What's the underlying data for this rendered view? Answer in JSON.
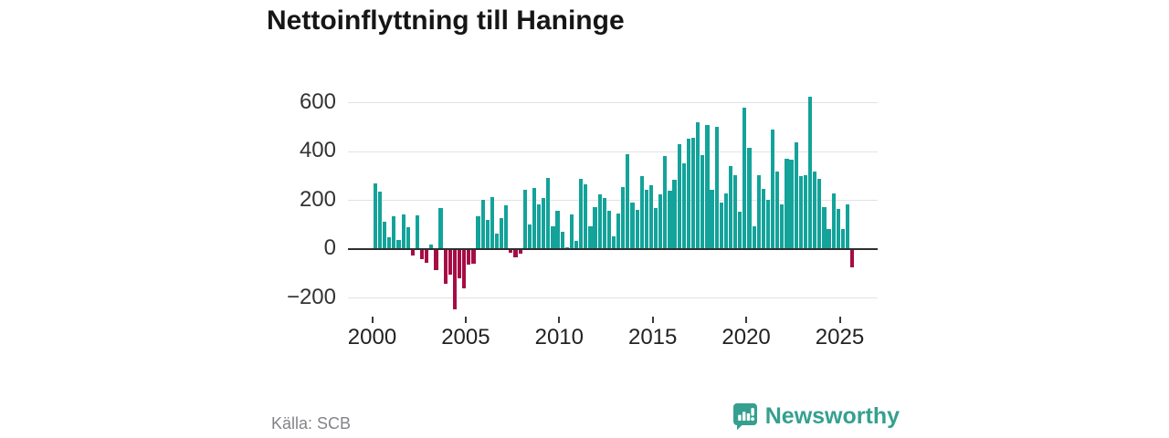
{
  "title": "Nettoinflyttning till Haninge",
  "source": "Källa: SCB",
  "branding": {
    "name": "Newsworthy"
  },
  "colors": {
    "positive_bar": "#13a39a",
    "negative_bar": "#a60d45",
    "brand_teal": "#35a08f",
    "grid": "#e2e2e2",
    "zero_line": "#2e2e2e",
    "axis_text": "#333333",
    "source_text": "#83848a",
    "title_text": "#161616"
  },
  "chart_data": {
    "type": "bar",
    "title": "Nettoinflyttning till Haninge",
    "x_start_year": 2000,
    "points_per_year": 4,
    "x_ticks": [
      2000,
      2005,
      2010,
      2015,
      2020,
      2025
    ],
    "y_ticks": [
      600,
      400,
      200,
      0,
      -200
    ],
    "ylim": [
      -260,
      660
    ],
    "grid": true,
    "legend": "none",
    "values": [
      265,
      230,
      110,
      45,
      130,
      35,
      140,
      85,
      -22,
      135,
      -35,
      -50,
      15,
      -80,
      165,
      -135,
      -100,
      -240,
      -115,
      -155,
      -60,
      -55,
      130,
      200,
      115,
      210,
      60,
      125,
      175,
      -8,
      -30,
      -15,
      238,
      96,
      246,
      178,
      206,
      287,
      89,
      155,
      67,
      5,
      137,
      30,
      285,
      260,
      91,
      167,
      222,
      207,
      155,
      50,
      142,
      250,
      385,
      186,
      157,
      297,
      240,
      259,
      165,
      220,
      377,
      236,
      282,
      428,
      346,
      449,
      453,
      515,
      382,
      506,
      240,
      497,
      188,
      225,
      335,
      298,
      150,
      575,
      412,
      91,
      300,
      244,
      200,
      487,
      313,
      180,
      365,
      363,
      434,
      294,
      300,
      620,
      313,
      283,
      167,
      79,
      224,
      161,
      79,
      178,
      -70
    ]
  }
}
